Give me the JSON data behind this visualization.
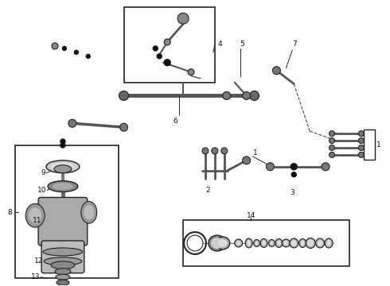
{
  "bg_color": "#ffffff",
  "line_color": "#222222",
  "label_color": "#111111",
  "label_fontsize": 6.5,
  "fig_width": 4.9,
  "fig_height": 3.6,
  "dpi": 100
}
